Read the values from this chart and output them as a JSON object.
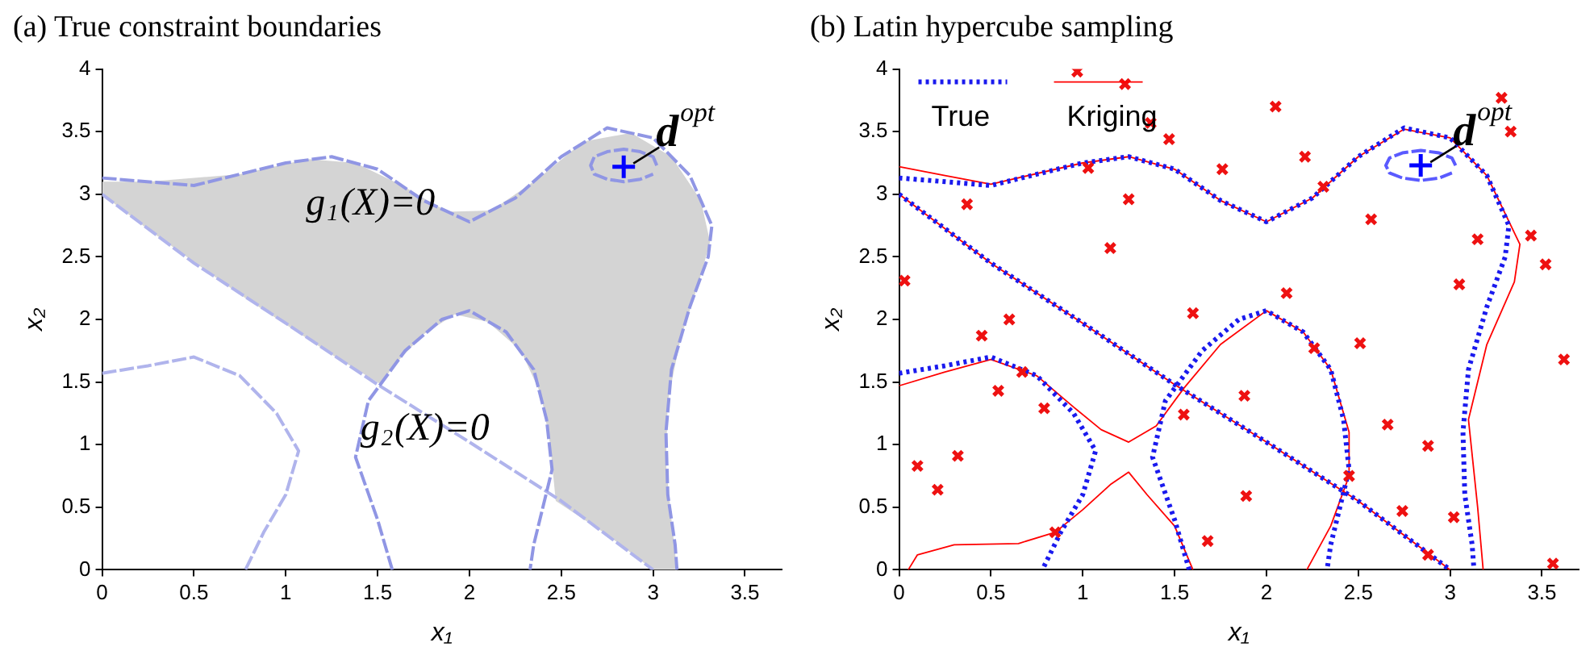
{
  "chart_data": [
    {
      "type": "line",
      "title": "(a) True constraint boundaries",
      "xlabel": "x₁",
      "ylabel": "x₂",
      "xlim": [
        0,
        3.7
      ],
      "ylim": [
        0,
        4
      ],
      "xticks": [
        0,
        0.5,
        1,
        1.5,
        2,
        2.5,
        3,
        3.5
      ],
      "yticks": [
        0,
        0.5,
        1,
        1.5,
        2,
        2.5,
        3,
        3.5,
        4
      ],
      "grid": false,
      "legend": false,
      "series": [
        {
          "type": "line",
          "color": "#9096e4",
          "line_style": "dashed",
          "x": [
            0,
            0.5,
            1,
            1.25,
            1.5,
            1.75,
            2,
            2.25,
            2.5,
            2.75,
            3,
            3.2,
            3.32,
            3.3,
            3.2,
            3.1,
            3.07,
            3.08,
            3.12,
            3.13
          ],
          "values": [
            3.13,
            3.07,
            3.25,
            3.3,
            3.2,
            2.95,
            2.78,
            2.97,
            3.3,
            3.53,
            3.45,
            3.15,
            2.75,
            2.5,
            2.1,
            1.6,
            1.1,
            0.6,
            0.2,
            0
          ]
        },
        {
          "type": "line",
          "color": "#b0b4ec",
          "line_style": "dashed",
          "x": [
            0,
            0.5,
            1,
            1.5,
            2,
            2.5,
            3
          ],
          "values": [
            3,
            2.45,
            1.97,
            1.48,
            1.02,
            0.55,
            0
          ]
        },
        {
          "type": "line",
          "color": "#b0b4ec",
          "line_style": "dashed",
          "x": [
            0,
            0.25,
            0.5,
            0.75,
            0.95,
            1.07,
            1,
            0.88,
            0.78
          ],
          "values": [
            1.57,
            1.63,
            1.7,
            1.55,
            1.25,
            0.95,
            0.6,
            0.3,
            0
          ]
        },
        {
          "type": "line",
          "color": "#9096e4",
          "line_style": "dashed",
          "x": [
            1.58,
            1.5,
            1.38,
            1.45,
            1.65,
            1.85,
            2,
            2.2,
            2.35,
            2.42,
            2.45,
            2.4,
            2.35,
            2.33
          ],
          "values": [
            0,
            0.4,
            0.9,
            1.35,
            1.75,
            2,
            2.07,
            1.9,
            1.6,
            1.2,
            0.8,
            0.5,
            0.2,
            0
          ]
        },
        {
          "type": "line",
          "color": "#9096e4",
          "line_style": "dashed",
          "x": [
            3.02,
            3,
            2.93,
            2.84,
            2.75,
            2.68,
            2.66,
            2.68,
            2.75,
            2.84,
            2.93,
            3
          ],
          "values": [
            3.23,
            3.3,
            3.34,
            3.36,
            3.34,
            3.3,
            3.23,
            3.16,
            3.12,
            3.1,
            3.12,
            3.16
          ]
        },
        {
          "type": "scatter",
          "color": "#0000ff",
          "marker": "plus",
          "x": [
            2.84
          ],
          "values": [
            3.22
          ]
        },
        {
          "type": "area",
          "color": "#d4d4d4",
          "x": [
            0,
            0.25,
            0.75,
            1.12,
            1.38,
            1.62,
            1.88,
            2.12,
            2.38,
            2.62,
            2.88,
            3.1,
            3.26,
            3.31,
            3.25,
            3.15,
            3.08,
            3.07,
            3.1,
            3.13,
            3,
            2.75,
            2.47,
            2.44,
            2.39,
            2.28,
            2.1,
            1.92,
            1.75,
            1.58,
            1.52,
            1.25,
            0.75,
            0.25,
            0
          ],
          "values": [
            3.1,
            3.1,
            3.16,
            3.28,
            3.25,
            3.08,
            2.86,
            2.87,
            3.13,
            3.42,
            3.49,
            3.3,
            2.95,
            2.62,
            2.3,
            1.85,
            1.35,
            0.85,
            0.4,
            0,
            0,
            0.28,
            0.55,
            1,
            1.4,
            1.75,
            1.98,
            2.04,
            1.88,
            1.62,
            1.48,
            1.72,
            2.2,
            2.72,
            3
          ]
        }
      ],
      "annotations": [
        {
          "text": "d$^{opt}$",
          "x": 2.84,
          "y": 3.22
        },
        "g$_{1}$(X)=0",
        "g$_{2}$(X)=0"
      ]
    },
    {
      "type": "line",
      "title": "(b) Latin hypercube sampling",
      "xlabel": "x₁",
      "ylabel": "x₂",
      "xlim": [
        0,
        3.7
      ],
      "ylim": [
        0,
        4
      ],
      "xticks": [
        0,
        0.5,
        1,
        1.5,
        2,
        2.5,
        3,
        3.5
      ],
      "yticks": [
        0,
        0.5,
        1,
        1.5,
        2,
        2.5,
        3,
        3.5,
        4
      ],
      "grid": false,
      "legend": "top left",
      "series": [
        {
          "type": "line",
          "name": "Kriging",
          "color": "#ff0000",
          "line_style": "solid",
          "x": [
            0,
            0.25,
            0.5,
            1,
            1.25,
            1.5,
            1.75,
            2,
            2.25,
            2.5,
            2.75,
            3,
            3.2,
            3.38,
            3.35,
            3.2,
            3.1,
            3.15,
            3.18
          ],
          "values": [
            3.22,
            3.15,
            3.08,
            3.25,
            3.3,
            3.2,
            2.95,
            2.78,
            2.97,
            3.3,
            3.52,
            3.45,
            3.15,
            2.6,
            2.3,
            1.8,
            1.2,
            0.5,
            0
          ]
        },
        {
          "type": "line",
          "color": "#ff0000",
          "line_style": "solid",
          "x": [
            0,
            0.5,
            1,
            1.5,
            2,
            2.5,
            3
          ],
          "values": [
            3,
            2.45,
            1.97,
            1.48,
            1.02,
            0.55,
            0
          ]
        },
        {
          "type": "line",
          "color": "#ff0000",
          "line_style": "solid",
          "x": [
            0,
            0.25,
            0.5,
            0.75,
            0.95,
            1.1,
            1.25,
            1.4,
            1.55,
            1.75,
            2,
            2.2,
            2.35,
            2.45,
            2.45,
            2.35,
            2.22
          ],
          "values": [
            1.47,
            1.58,
            1.68,
            1.55,
            1.3,
            1.12,
            1.02,
            1.15,
            1.45,
            1.8,
            2.07,
            1.9,
            1.6,
            1.1,
            0.75,
            0.35,
            0
          ]
        },
        {
          "type": "line",
          "color": "#ff0000",
          "line_style": "solid",
          "x": [
            0.05,
            0.1,
            0.3,
            0.65,
            0.85,
            1,
            1.15,
            1.25,
            1.35,
            1.5,
            1.6
          ],
          "values": [
            0,
            0.12,
            0.2,
            0.21,
            0.3,
            0.48,
            0.68,
            0.78,
            0.6,
            0.35,
            0
          ]
        },
        {
          "type": "line",
          "name": "True",
          "color": "#1a1aee",
          "line_style": "dotted",
          "x": [
            0,
            0.5,
            1,
            1.25,
            1.5,
            1.75,
            2,
            2.25,
            2.5,
            2.75,
            3,
            3.2,
            3.32,
            3.3,
            3.2,
            3.1,
            3.07,
            3.08,
            3.12,
            3.13
          ],
          "values": [
            3.13,
            3.07,
            3.25,
            3.3,
            3.2,
            2.95,
            2.78,
            2.97,
            3.3,
            3.53,
            3.45,
            3.15,
            2.75,
            2.5,
            2.1,
            1.6,
            1.1,
            0.6,
            0.2,
            0
          ]
        },
        {
          "type": "line",
          "color": "#1a1aee",
          "line_style": "dotted",
          "x": [
            0,
            0.5,
            1,
            1.5,
            2,
            2.5,
            3
          ],
          "values": [
            3,
            2.45,
            1.97,
            1.48,
            1.02,
            0.55,
            0
          ]
        },
        {
          "type": "line",
          "color": "#1a1aee",
          "line_style": "dotted",
          "x": [
            0,
            0.25,
            0.5,
            0.75,
            0.95,
            1.07,
            1,
            0.88,
            0.78
          ],
          "values": [
            1.57,
            1.63,
            1.7,
            1.55,
            1.25,
            0.95,
            0.6,
            0.3,
            0
          ]
        },
        {
          "type": "line",
          "color": "#1a1aee",
          "line_style": "dotted",
          "x": [
            1.58,
            1.5,
            1.38,
            1.45,
            1.65,
            1.85,
            2,
            2.2,
            2.35,
            2.42,
            2.45,
            2.4,
            2.35,
            2.33
          ],
          "values": [
            0,
            0.4,
            0.9,
            1.35,
            1.75,
            2,
            2.07,
            1.9,
            1.6,
            1.2,
            0.8,
            0.5,
            0.2,
            0
          ]
        },
        {
          "type": "line",
          "color": "#5a5aff",
          "line_style": "dashed",
          "x": [
            3.03,
            3.01,
            2.94,
            2.84,
            2.74,
            2.67,
            2.65,
            2.67,
            2.74,
            2.84,
            2.94,
            3.01
          ],
          "values": [
            3.23,
            3.29,
            3.33,
            3.35,
            3.33,
            3.29,
            3.23,
            3.17,
            3.13,
            3.11,
            3.13,
            3.17
          ]
        },
        {
          "type": "scatter",
          "color": "#ee1111",
          "marker": "cross",
          "x": [
            0.97,
            1.23,
            1.37,
            1.47,
            1.03,
            1.25,
            0.37,
            1.15,
            0.03,
            0.6,
            0.45,
            1.6,
            0.67,
            0.54,
            0.79,
            1.55,
            0.32,
            0.1,
            0.21,
            0.85,
            3.28,
            2.05,
            3.33,
            2.21,
            1.76,
            2.31,
            2.57,
            3.44,
            3.15,
            3.52,
            3.05,
            2.11,
            2.51,
            2.26,
            3.62,
            1.88,
            2.66,
            2.88,
            2.45,
            1.89,
            2.74,
            3.02,
            1.68,
            2.88,
            3.56
          ],
          "values": [
            3.98,
            3.88,
            3.57,
            3.44,
            3.21,
            2.96,
            2.92,
            2.57,
            2.31,
            2,
            1.87,
            2.05,
            1.58,
            1.43,
            1.29,
            1.24,
            0.91,
            0.83,
            0.64,
            0.3,
            3.77,
            3.7,
            3.5,
            3.3,
            3.2,
            3.06,
            2.8,
            2.67,
            2.64,
            2.44,
            2.28,
            2.21,
            1.81,
            1.77,
            1.68,
            1.39,
            1.16,
            0.99,
            0.75,
            0.59,
            0.47,
            0.42,
            0.23,
            0.12,
            0.05
          ]
        },
        {
          "type": "scatter",
          "color": "#0000ff",
          "marker": "plus",
          "x": [
            2.84
          ],
          "values": [
            3.23
          ]
        }
      ],
      "annotations": [
        {
          "text": "d$^{opt}$",
          "x": 2.84,
          "y": 3.23
        }
      ]
    }
  ]
}
